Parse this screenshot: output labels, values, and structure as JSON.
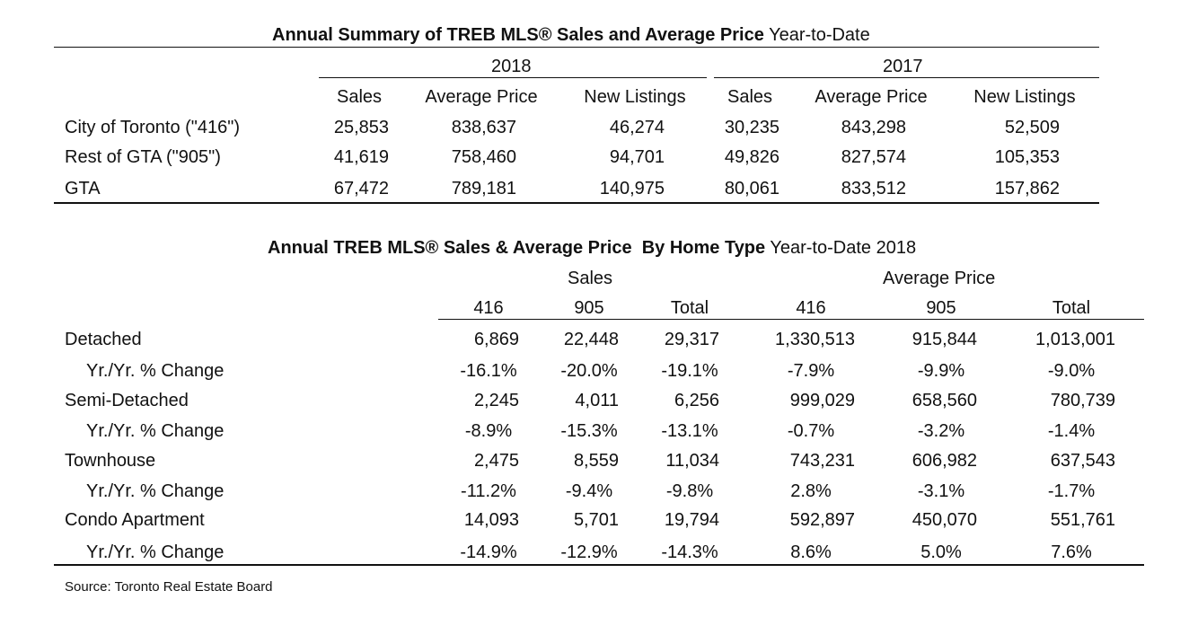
{
  "summary": {
    "title_bold": "Annual Summary of TREB MLS® Sales and Average Price",
    "title_rest": "Year-to-Date",
    "year_a": "2018",
    "year_b": "2017",
    "columns": [
      "Sales",
      "Average Price",
      "New Listings",
      "Sales",
      "Average Price",
      "New Listings"
    ],
    "rows": [
      {
        "label": "City of Toronto (\"416\")",
        "values": [
          "25,853",
          "838,637",
          "46,274",
          "30,235",
          "843,298",
          "52,509"
        ]
      },
      {
        "label": "Rest of GTA (\"905\")",
        "values": [
          "41,619",
          "758,460",
          "94,701",
          "49,826",
          "827,574",
          "105,353"
        ]
      },
      {
        "label": "GTA",
        "values": [
          "67,472",
          "789,181",
          "140,975",
          "80,061",
          "833,512",
          "157,862"
        ]
      }
    ]
  },
  "hometype": {
    "title_bold": "Annual TREB MLS® Sales & Average Price  By Home Type",
    "title_rest": "Year-to-Date 2018",
    "group_sales": "Sales",
    "group_price": "Average Price",
    "columns": [
      "416",
      "905",
      "Total",
      "416",
      "905",
      "Total"
    ],
    "rows": [
      {
        "label": "Detached",
        "values": [
          "6,869",
          "22,448",
          "29,317",
          "1,330,513",
          "915,844",
          "1,013,001"
        ]
      },
      {
        "label": "Yr./Yr. % Change",
        "values": [
          "-16.1%",
          "-20.0%",
          "-19.1%",
          "-7.9%",
          "-9.9%",
          "-9.0%"
        ]
      },
      {
        "label": "Semi-Detached",
        "values": [
          "2,245",
          "4,011",
          "6,256",
          "999,029",
          "658,560",
          "780,739"
        ]
      },
      {
        "label": "Yr./Yr. % Change",
        "values": [
          "-8.9%",
          "-15.3%",
          "-13.1%",
          "-0.7%",
          "-3.2%",
          "-1.4%"
        ]
      },
      {
        "label": "Townhouse",
        "values": [
          "2,475",
          "8,559",
          "11,034",
          "743,231",
          "606,982",
          "637,543"
        ]
      },
      {
        "label": "Yr./Yr. % Change",
        "values": [
          "-11.2%",
          "-9.4%",
          "-9.8%",
          "2.8%",
          "-3.1%",
          "-1.7%"
        ]
      },
      {
        "label": "Condo Apartment",
        "values": [
          "14,093",
          "5,701",
          "19,794",
          "592,897",
          "450,070",
          "551,761"
        ]
      },
      {
        "label": "Yr./Yr. % Change",
        "values": [
          "-14.9%",
          "-12.9%",
          "-14.3%",
          "8.6%",
          "5.0%",
          "7.6%"
        ]
      }
    ]
  },
  "source": "Source: Toronto Real Estate Board"
}
